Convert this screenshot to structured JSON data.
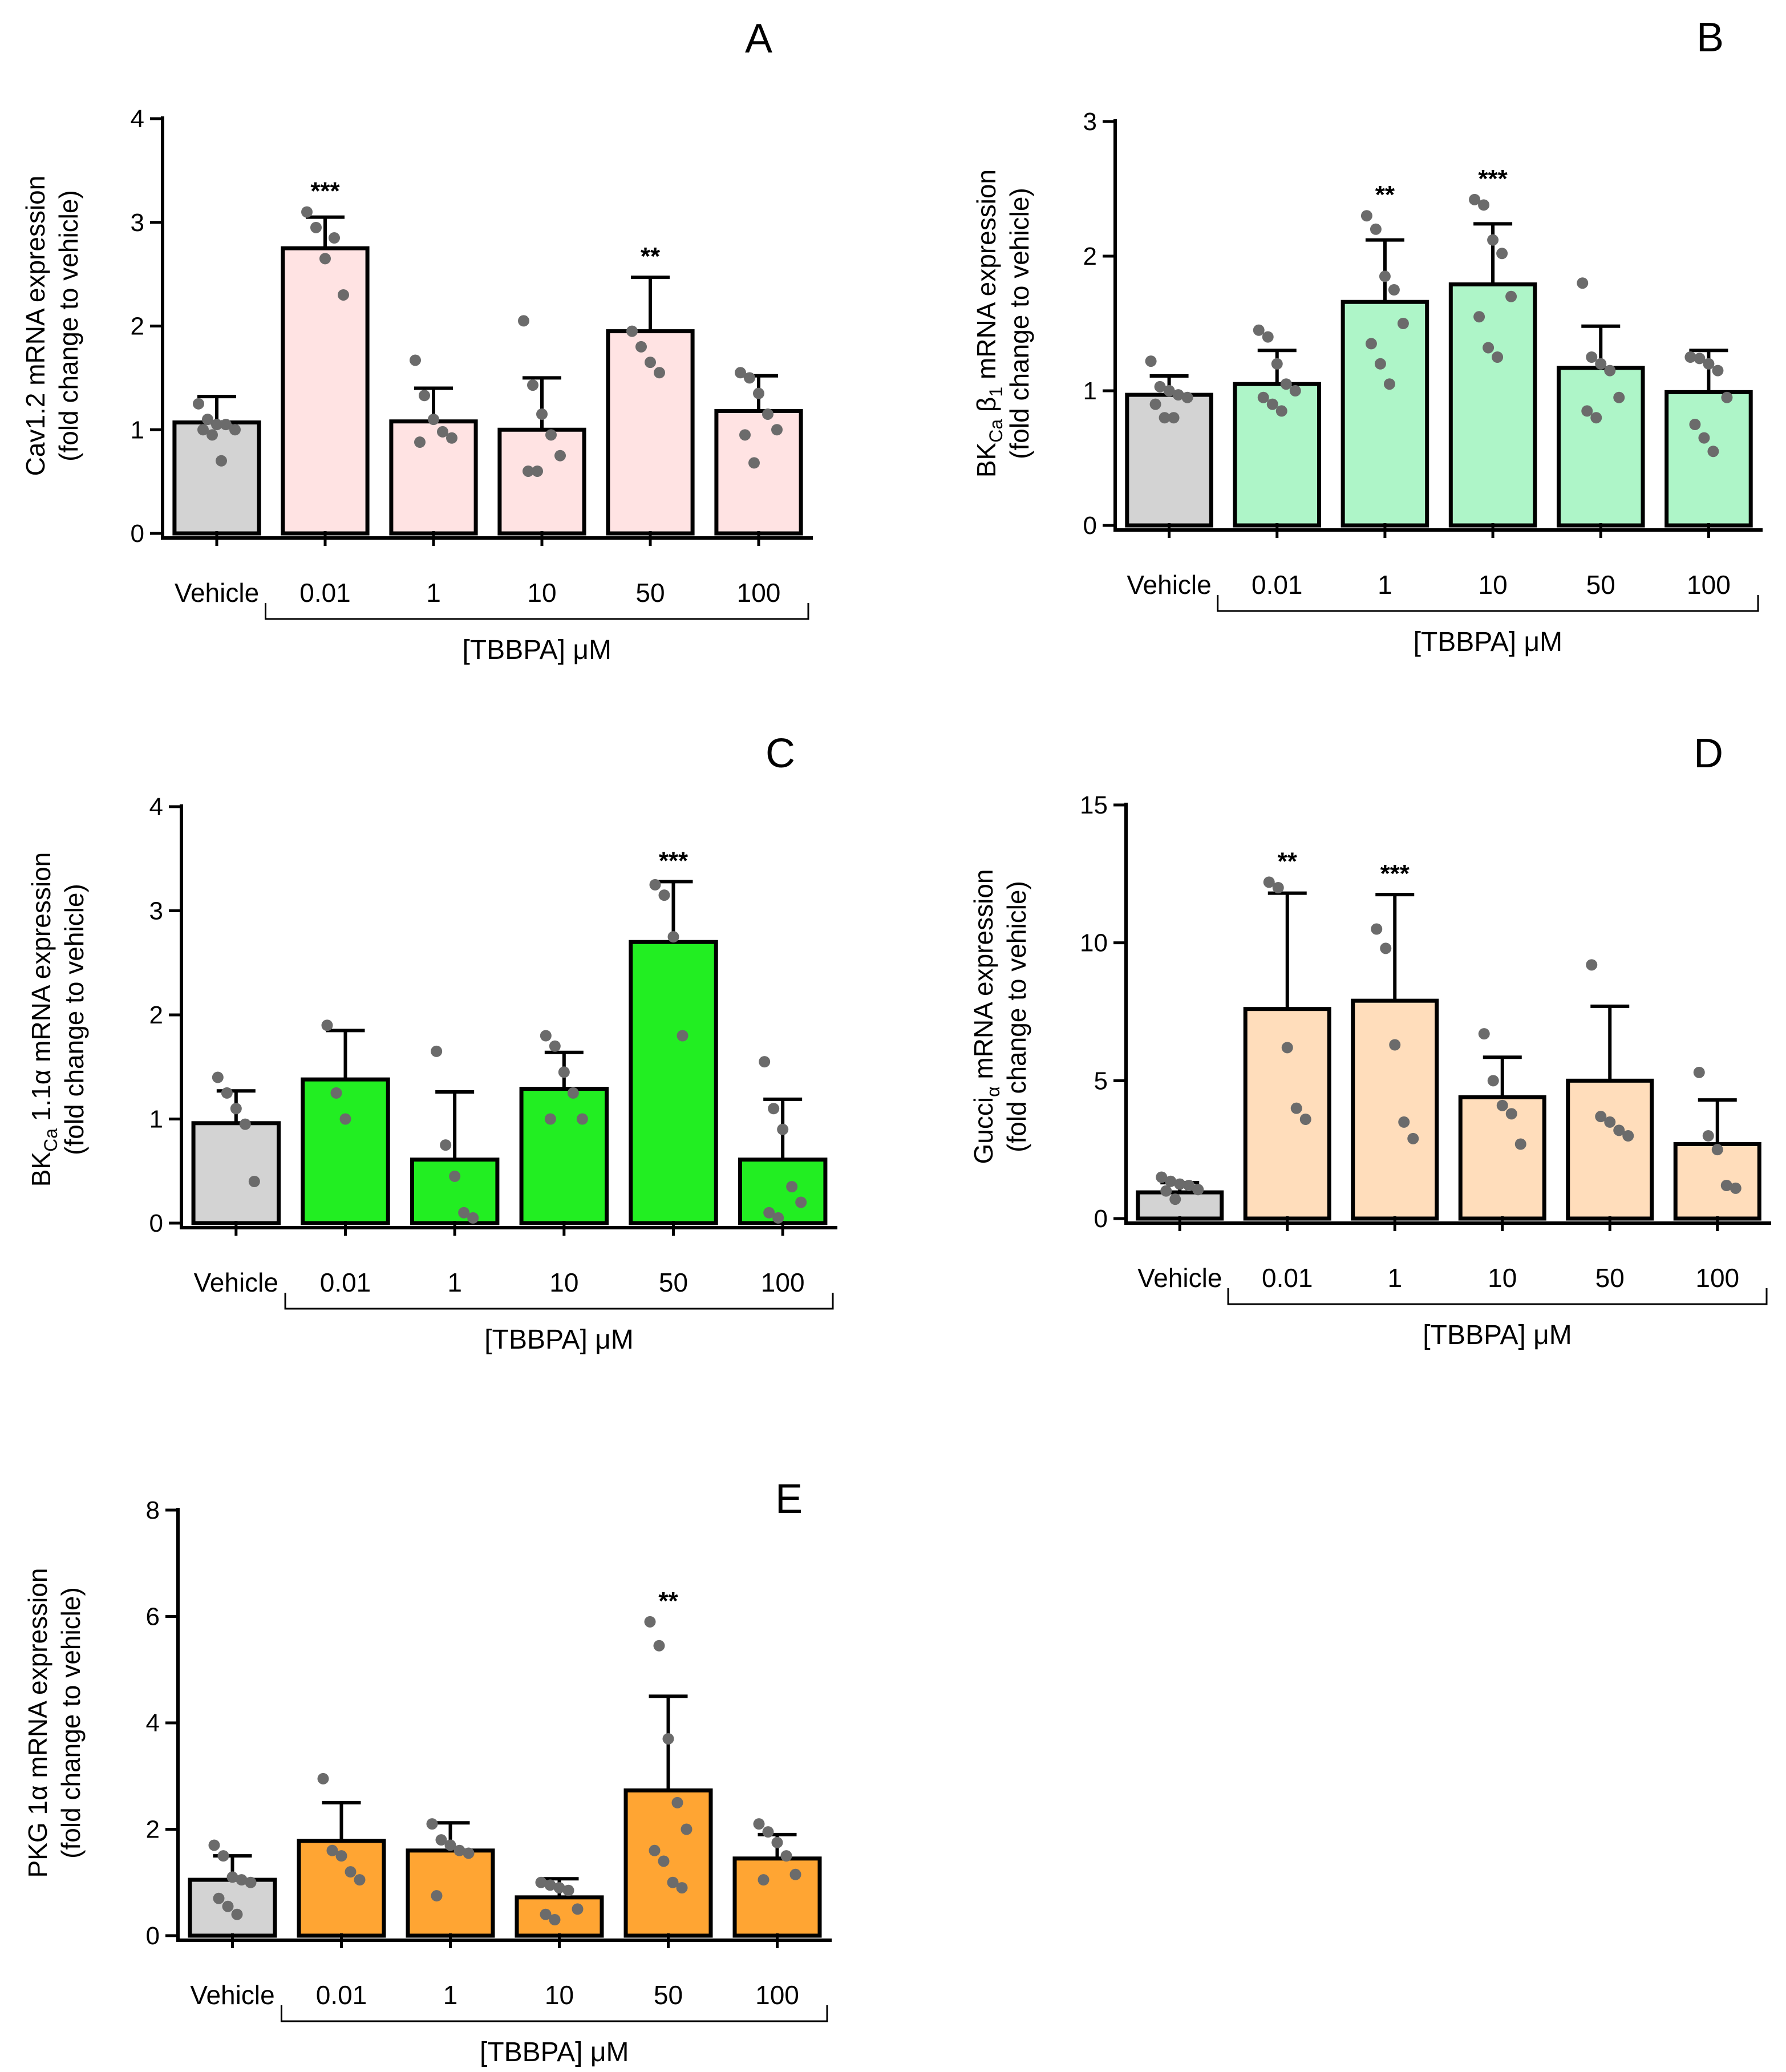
{
  "chart_data": [
    {
      "type": "bar",
      "panel": "A",
      "ylabel_line1": "Cav1.2 mRNA expression",
      "ylabel_line2": "(fold change to vehicle)",
      "xgroup_label": "[TBBPA] μM",
      "categories": [
        "Vehicle",
        "0.01",
        "1",
        "10",
        "50",
        "100"
      ],
      "values": [
        1.07,
        2.75,
        1.08,
        1.0,
        1.95,
        1.18
      ],
      "errors": [
        0.25,
        0.3,
        0.32,
        0.5,
        0.52,
        0.34
      ],
      "significance": [
        "",
        "***",
        "",
        "",
        "**",
        ""
      ],
      "points": [
        [
          1.25,
          1.1,
          1.05,
          1.05,
          1.0,
          1.0,
          0.95,
          0.7
        ],
        [
          3.1,
          2.95,
          2.65,
          2.85,
          2.3
        ],
        [
          1.67,
          1.33,
          1.1,
          0.98,
          0.92,
          0.88
        ],
        [
          2.05,
          1.43,
          1.15,
          0.95,
          0.75,
          0.6,
          0.6
        ],
        [
          1.95,
          1.8,
          1.65,
          1.55
        ],
        [
          1.55,
          1.5,
          1.35,
          1.15,
          1.0,
          0.95,
          0.68
        ]
      ],
      "bar_color": "#ffe3e3",
      "ylim": [
        0,
        4
      ],
      "yticks": [
        "0",
        "1",
        "2",
        "3",
        "4"
      ]
    },
    {
      "type": "bar",
      "panel": "B",
      "ylabel_line1": "BK",
      "ylabel_sub1": "Ca",
      "ylabel_mid": " β",
      "ylabel_sub2": "1",
      "ylabel_tail": " mRNA expression",
      "ylabel_line2": "(fold change to vehicle)",
      "xgroup_label": "[TBBPA] μM",
      "categories": [
        "Vehicle",
        "0.01",
        "1",
        "10",
        "50",
        "100"
      ],
      "values": [
        0.97,
        1.05,
        1.66,
        1.79,
        1.17,
        0.99
      ],
      "errors": [
        0.14,
        0.25,
        0.46,
        0.45,
        0.31,
        0.31
      ],
      "significance": [
        "",
        "",
        "**",
        "***",
        "",
        ""
      ],
      "points": [
        [
          1.22,
          1.03,
          1.0,
          0.97,
          0.95,
          0.9,
          0.8,
          0.8
        ],
        [
          1.45,
          1.4,
          1.2,
          1.05,
          1.0,
          0.95,
          0.9,
          0.85
        ],
        [
          2.3,
          2.2,
          1.85,
          1.75,
          1.5,
          1.35,
          1.2,
          1.05
        ],
        [
          2.42,
          2.38,
          2.12,
          2.02,
          1.7,
          1.55,
          1.32,
          1.25
        ],
        [
          1.8,
          1.25,
          1.2,
          1.15,
          0.95,
          0.85,
          0.8
        ],
        [
          1.25,
          1.24,
          1.2,
          1.15,
          0.95,
          0.75,
          0.65,
          0.55
        ]
      ],
      "bar_color": "#aef5c8",
      "ylim": [
        0,
        3
      ],
      "yticks": [
        "0",
        "1",
        "2",
        "3"
      ]
    },
    {
      "type": "bar",
      "panel": "C",
      "ylabel_line1": "BK",
      "ylabel_sub1": "Ca",
      "ylabel_mid": " 1.1α",
      "ylabel_sub2": "",
      "ylabel_tail": " mRNA expression",
      "ylabel_line2": "(fold change to vehicle)",
      "xgroup_label": "[TBBPA] μM",
      "categories": [
        "Vehicle",
        "0.01",
        "1",
        "10",
        "50",
        "100"
      ],
      "values": [
        0.96,
        1.38,
        0.61,
        1.29,
        2.7,
        0.61
      ],
      "errors": [
        0.31,
        0.47,
        0.65,
        0.35,
        0.58,
        0.58
      ],
      "significance": [
        "",
        "",
        "",
        "",
        "***",
        ""
      ],
      "points": [
        [
          1.4,
          1.25,
          1.1,
          0.95,
          0.4
        ],
        [
          1.9,
          1.25,
          1.0
        ],
        [
          1.65,
          0.75,
          0.45,
          0.1,
          0.05
        ],
        [
          1.8,
          1.7,
          1.45,
          1.25,
          1.0,
          1.0
        ],
        [
          3.25,
          3.15,
          2.75,
          1.8
        ],
        [
          1.55,
          1.1,
          0.9,
          0.35,
          0.2,
          0.1,
          0.05
        ]
      ],
      "bar_color": "#22ee22",
      "ylim": [
        0,
        4
      ],
      "yticks": [
        "0",
        "1",
        "2",
        "3",
        "4"
      ]
    },
    {
      "type": "bar",
      "panel": "D",
      "ylabel_line1": "Gucci",
      "ylabel_sub1": "α",
      "ylabel_mid": "",
      "ylabel_sub2": "",
      "ylabel_tail": " mRNA expression",
      "ylabel_line2": "(fold change to vehicle)",
      "xgroup_label": "[TBBPA] μM",
      "categories": [
        "Vehicle",
        "0.01",
        "1",
        "10",
        "50",
        "100"
      ],
      "values": [
        0.95,
        7.6,
        7.9,
        4.4,
        5.0,
        2.7
      ],
      "errors": [
        0.35,
        4.2,
        3.85,
        1.45,
        2.7,
        1.6
      ],
      "significance": [
        "",
        "**",
        "***",
        "",
        "",
        ""
      ],
      "points": [
        [
          1.5,
          1.35,
          1.25,
          1.2,
          1.05,
          1.0,
          0.7
        ],
        [
          12.2,
          12.0,
          6.2,
          4.0,
          3.6
        ],
        [
          10.5,
          9.8,
          6.3,
          3.5,
          2.9
        ],
        [
          6.7,
          5.0,
          4.1,
          3.8,
          2.7
        ],
        [
          9.2,
          3.7,
          3.5,
          3.2,
          3.0
        ],
        [
          5.3,
          3.0,
          2.5,
          1.2,
          1.1
        ]
      ],
      "bar_color": "#ffddbb",
      "ylim": [
        0,
        15
      ],
      "yticks": [
        "0",
        "5",
        "10",
        "15"
      ]
    },
    {
      "type": "bar",
      "panel": "E",
      "ylabel_line1": "PKG 1α mRNA expression",
      "ylabel_line2": "(fold change to vehicle)",
      "xgroup_label": "[TBBPA] μM",
      "categories": [
        "Vehicle",
        "0.01",
        "1",
        "10",
        "50",
        "100"
      ],
      "values": [
        1.05,
        1.78,
        1.6,
        0.72,
        2.73,
        1.45
      ],
      "errors": [
        0.45,
        0.72,
        0.52,
        0.35,
        1.77,
        0.45
      ],
      "significance": [
        "",
        "",
        "",
        "",
        "**",
        ""
      ],
      "points": [
        [
          1.7,
          1.5,
          1.1,
          1.05,
          1.0,
          0.7,
          0.55,
          0.4
        ],
        [
          2.95,
          1.6,
          1.5,
          1.2,
          1.05
        ],
        [
          2.1,
          1.8,
          1.7,
          1.6,
          1.55,
          0.75
        ],
        [
          1.0,
          0.95,
          0.9,
          0.85,
          0.5,
          0.4,
          0.3
        ],
        [
          5.9,
          5.45,
          3.7,
          2.5,
          2.0,
          1.6,
          1.4,
          1.0,
          0.9
        ],
        [
          2.1,
          1.95,
          1.75,
          1.5,
          1.15,
          1.05
        ]
      ],
      "bar_color": "#ffa533",
      "ylim": [
        0,
        8
      ],
      "yticks": [
        "0",
        "2",
        "4",
        "6",
        "8"
      ]
    }
  ]
}
